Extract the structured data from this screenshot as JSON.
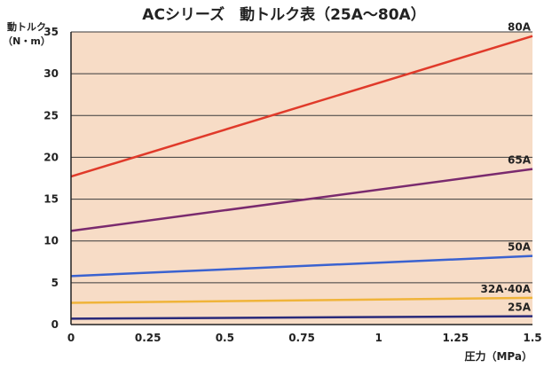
{
  "chart_data": {
    "type": "line",
    "title": "ACシリーズ　動トルク表（25A〜80A）",
    "ylabel_line1": "動トルク",
    "ylabel_line2": "（N・m）",
    "xlabel": "圧力（MPa）",
    "xlim": [
      0,
      1.5
    ],
    "ylim": [
      0,
      35
    ],
    "x_ticks": [
      0,
      0.25,
      0.5,
      0.75,
      1,
      1.25,
      1.5
    ],
    "x_tick_labels": [
      "0",
      "0.25",
      "0.5",
      "0.75",
      "1",
      "1.25",
      "1.5"
    ],
    "y_ticks": [
      0,
      5,
      10,
      15,
      20,
      25,
      30,
      35
    ],
    "y_tick_labels": [
      "0",
      "5",
      "10",
      "15",
      "20",
      "25",
      "30",
      "35"
    ],
    "grid": "horizontal",
    "background_color": "#f7dcc6",
    "series": [
      {
        "name": "80A",
        "color": "#e03a2a",
        "x": [
          0,
          1.5
        ],
        "values": [
          17.7,
          34.5
        ]
      },
      {
        "name": "65A",
        "color": "#7a2a6e",
        "x": [
          0,
          1.5
        ],
        "values": [
          11.2,
          18.6
        ]
      },
      {
        "name": "50A",
        "color": "#3a62d0",
        "x": [
          0,
          1.5
        ],
        "values": [
          5.8,
          8.2
        ]
      },
      {
        "name": "32A·40A",
        "color": "#f0b43a",
        "x": [
          0,
          1.5
        ],
        "values": [
          2.6,
          3.2
        ]
      },
      {
        "name": "25A",
        "color": "#2a2a7a",
        "x": [
          0,
          1.5
        ],
        "values": [
          0.7,
          1.0
        ]
      }
    ]
  }
}
